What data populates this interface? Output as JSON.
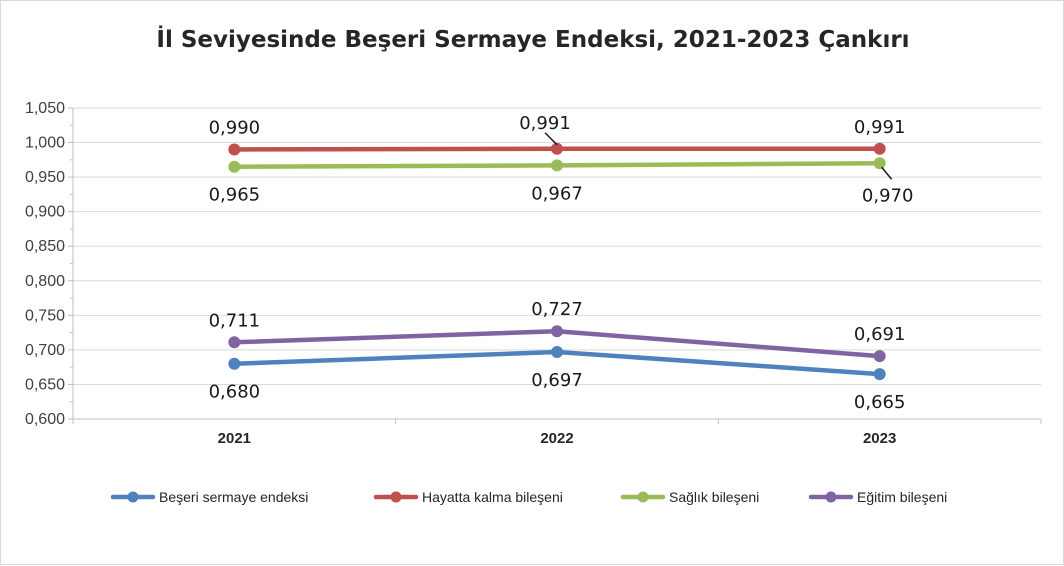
{
  "chart_data": {
    "type": "line",
    "title": "İl Seviyesinde Beşeri Sermaye Endeksi, 2021-2023 Çankırı",
    "categories": [
      "2021",
      "2022",
      "2023"
    ],
    "ylim": [
      0.6,
      1.05
    ],
    "yticks": [
      0.6,
      0.65,
      0.7,
      0.75,
      0.8,
      0.85,
      0.9,
      0.95,
      1.0,
      1.05
    ],
    "ytick_labels": [
      "0,600",
      "0,650",
      "0,700",
      "0,750",
      "0,800",
      "0,850",
      "0,900",
      "0,950",
      "1,000",
      "1,050"
    ],
    "grid": true,
    "legend_position": "bottom",
    "series": [
      {
        "name": "Beşeri sermaye endeksi",
        "color": "#4f81bd",
        "values": [
          0.68,
          0.697,
          0.665
        ],
        "labels": [
          "0,680",
          "0,697",
          "0,665"
        ],
        "label_side": [
          "below",
          "below",
          "below"
        ]
      },
      {
        "name": "Hayatta kalma bileşeni",
        "color": "#c0504d",
        "values": [
          0.99,
          0.991,
          0.991
        ],
        "labels": [
          "0,990",
          "0,991",
          "0,991"
        ],
        "label_side": [
          "above",
          "above-leader",
          "above"
        ]
      },
      {
        "name": "Sağlık bileşeni",
        "color": "#9bbb59",
        "values": [
          0.965,
          0.967,
          0.97
        ],
        "labels": [
          "0,965",
          "0,967",
          "0,970"
        ],
        "label_side": [
          "below",
          "below",
          "below-leader"
        ]
      },
      {
        "name": "Eğitim bileşeni",
        "color": "#8064a2",
        "values": [
          0.711,
          0.727,
          0.691
        ],
        "labels": [
          "0,711",
          "0,727",
          "0,691"
        ],
        "label_side": [
          "above",
          "above",
          "above"
        ]
      }
    ]
  }
}
